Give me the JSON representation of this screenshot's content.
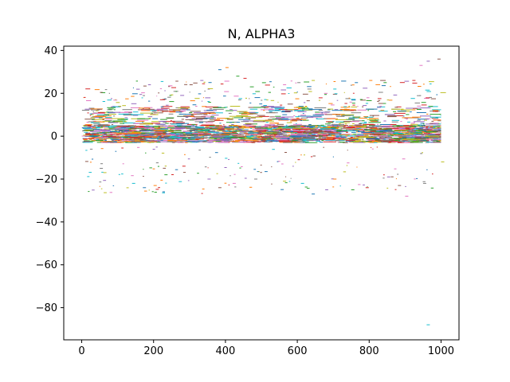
{
  "chart_data": {
    "type": "scatter",
    "title": "N, ALPHA3",
    "xlabel": "",
    "ylabel": "",
    "xlim": [
      -50,
      1050
    ],
    "ylim": [
      -95,
      42
    ],
    "x_ticks": [
      0,
      200,
      400,
      600,
      800,
      1000
    ],
    "y_ticks": [
      40,
      20,
      0,
      -20,
      -40,
      -60,
      -80
    ],
    "x_tick_labels": [
      "0",
      "200",
      "400",
      "600",
      "800",
      "1000"
    ],
    "y_tick_labels": [
      "40",
      "20",
      "0",
      "−20",
      "−40",
      "−60",
      "−80"
    ],
    "x_range_of_series": [
      0,
      1000
    ],
    "band": {
      "core_min": -3,
      "core_max": 5,
      "upper_edge_min": 8,
      "upper_edge_max": 14
    },
    "outliers": [
      {
        "x": 380,
        "y": 31
      },
      {
        "x": 400,
        "y": 32
      },
      {
        "x": 430,
        "y": 28
      },
      {
        "x": 450,
        "y": 27
      },
      {
        "x": 330,
        "y": 26
      },
      {
        "x": 300,
        "y": 24
      },
      {
        "x": 560,
        "y": 24
      },
      {
        "x": 600,
        "y": 25
      },
      {
        "x": 640,
        "y": 26
      },
      {
        "x": 700,
        "y": 22
      },
      {
        "x": 760,
        "y": 25
      },
      {
        "x": 800,
        "y": 26
      },
      {
        "x": 840,
        "y": 25
      },
      {
        "x": 920,
        "y": 26
      },
      {
        "x": 960,
        "y": 35
      },
      {
        "x": 990,
        "y": 36
      },
      {
        "x": 940,
        "y": 33
      },
      {
        "x": 50,
        "y": -15
      },
      {
        "x": 60,
        "y": -17
      },
      {
        "x": 140,
        "y": -22
      },
      {
        "x": 170,
        "y": -24
      },
      {
        "x": 200,
        "y": -23
      },
      {
        "x": 230,
        "y": -18
      },
      {
        "x": 280,
        "y": -14
      },
      {
        "x": 350,
        "y": -20
      },
      {
        "x": 380,
        "y": -24
      },
      {
        "x": 420,
        "y": -22
      },
      {
        "x": 480,
        "y": -20
      },
      {
        "x": 560,
        "y": -21
      },
      {
        "x": 610,
        "y": -22
      },
      {
        "x": 640,
        "y": -27
      },
      {
        "x": 700,
        "y": -20
      },
      {
        "x": 750,
        "y": -25
      },
      {
        "x": 790,
        "y": -24
      },
      {
        "x": 850,
        "y": -19
      },
      {
        "x": 880,
        "y": -23
      },
      {
        "x": 900,
        "y": -28
      },
      {
        "x": 950,
        "y": -22
      },
      {
        "x": 1000,
        "y": -12
      },
      {
        "x": 960,
        "y": -88
      }
    ]
  },
  "colors": {
    "series_palette": [
      "#1f77b4",
      "#ff7f0e",
      "#2ca02c",
      "#d62728",
      "#9467bd",
      "#8c564b",
      "#e377c2",
      "#7f7f7f",
      "#bcbd22",
      "#17becf"
    ],
    "axis": "#000000",
    "background": "#ffffff"
  }
}
